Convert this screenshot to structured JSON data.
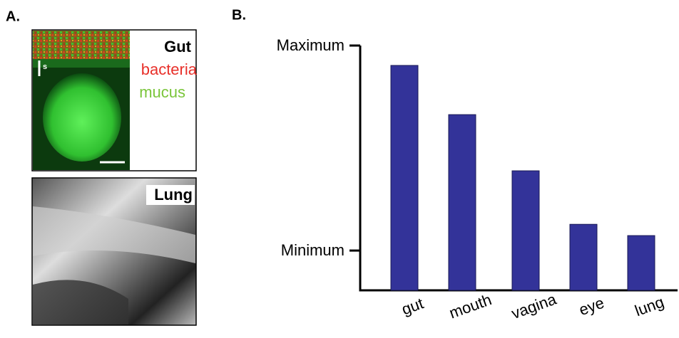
{
  "panel_labels": [
    "A.",
    "B."
  ],
  "images": [
    {
      "label": "Gut",
      "legend": [
        "bacteria",
        "mucus"
      ],
      "scale_label": "s"
    },
    {
      "label": "Lung"
    }
  ],
  "chart_data": {
    "type": "bar",
    "categories": [
      "gut",
      "mouth",
      "vagina",
      "eye",
      "lung"
    ],
    "values": [
      90.3,
      66.3,
      38.9,
      12.8,
      7.3
    ],
    "color": "#333399",
    "ylim": [
      -19.4,
      100
    ],
    "yticks": [
      {
        "value": 0,
        "label": "Minimum"
      },
      {
        "value": 100,
        "label": "Maximum"
      }
    ]
  }
}
